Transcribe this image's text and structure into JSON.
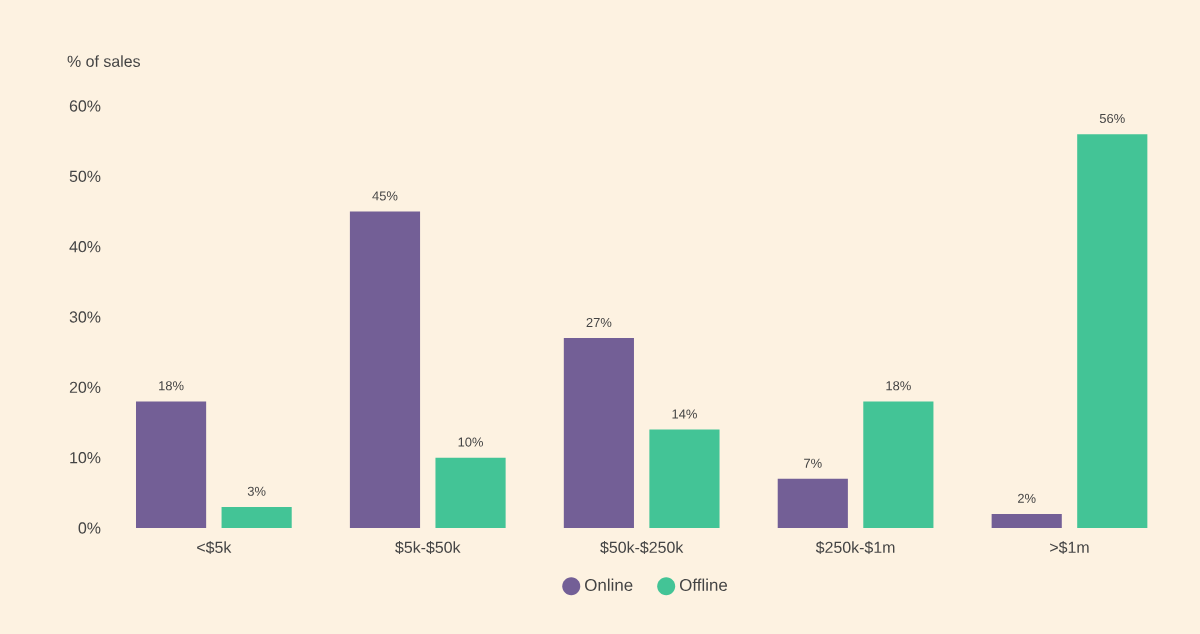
{
  "chart_data": {
    "type": "bar",
    "ylabel": "% of sales",
    "categories": [
      "<$5k",
      "$5k-$50k",
      "$50k-$250k",
      "$250k-$1m",
      ">$1m"
    ],
    "series": [
      {
        "name": "Online",
        "color": "#735f96",
        "values": [
          18,
          45,
          27,
          7,
          2
        ],
        "value_labels": [
          "18%",
          "45%",
          "27%",
          "7%",
          "2%"
        ]
      },
      {
        "name": "Offline",
        "color": "#43c496",
        "values": [
          3,
          10,
          14,
          18,
          56
        ],
        "value_labels": [
          "3%",
          "10%",
          "14%",
          "18%",
          "56%"
        ]
      }
    ],
    "ylim": [
      0,
      60
    ],
    "yticks": [
      {
        "value": 0,
        "label": "0%"
      },
      {
        "value": 10,
        "label": "10%"
      },
      {
        "value": 20,
        "label": "20%"
      },
      {
        "value": 30,
        "label": "30%"
      },
      {
        "value": 40,
        "label": "40%"
      },
      {
        "value": 50,
        "label": "50%"
      },
      {
        "value": 60,
        "label": "60%"
      }
    ],
    "grid": false,
    "legend": "bottom"
  }
}
